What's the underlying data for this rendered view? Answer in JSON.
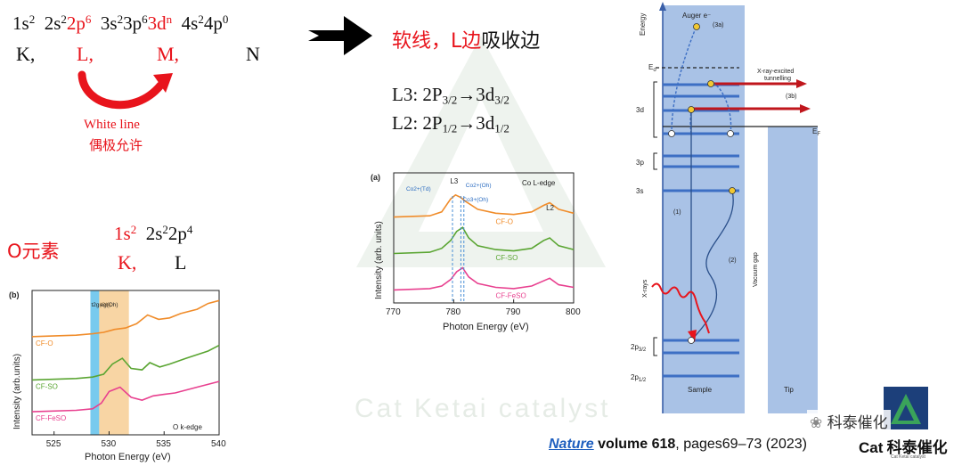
{
  "background_watermark": {
    "text": "Cat Ketai catalyst",
    "color": "#e4ebe4"
  },
  "top_left": {
    "config": [
      {
        "text": "1s",
        "sup": "2",
        "red": false
      },
      {
        "text": "2s",
        "sup": "2",
        "red": false
      },
      {
        "text": "2p",
        "sup": "6",
        "red": true
      },
      {
        "text": "3s",
        "sup": "2",
        "red": false
      },
      {
        "text": "3p",
        "sup": "6",
        "red": false
      },
      {
        "text": "3d",
        "sup": "n",
        "red": true
      },
      {
        "text": "4s",
        "sup": "2",
        "red": false
      },
      {
        "text": "4p",
        "sup": "0",
        "red": false
      }
    ],
    "shells": {
      "k": "K,",
      "l": "L,",
      "m": "M,",
      "n": "N"
    },
    "white_line": "White line",
    "dipole_allowed": "偶极允许"
  },
  "middle_text": {
    "soft_xray": "软线，L边",
    "absorption_edge": "吸收边",
    "l3_label": "L3: 2P",
    "l3_sub": "3/2",
    "l3_arrow_to": "→3d",
    "l3_sub2": "3/2",
    "l2_label": "L2: 2P",
    "l2_sub": "1/2",
    "l2_arrow_to": "→3d",
    "l2_sub2": "1/2"
  },
  "oxygen": {
    "label": "O元素",
    "config_a": "1s",
    "config_a_sup": "2",
    "config_b": "2s",
    "config_b_sup": "2",
    "config_c": "2p",
    "config_c_sup": "4",
    "shell_k": "K,",
    "shell_l": "L"
  },
  "colors": {
    "red": "#e8141c",
    "orange": "#f08c2a",
    "green": "#5aa532",
    "pink": "#e8408f",
    "blue_band": "#a9c2e6",
    "level_blue": "#3d6fc4",
    "dark_red": "#c0161c"
  },
  "chart_data": [
    {
      "type": "line",
      "panel": "(b)",
      "xlabel": "Photon Energy (eV)",
      "ylabel": "Intensity (arb.units)",
      "xlim": [
        523,
        540
      ],
      "xticks": [
        525,
        530,
        535,
        540
      ],
      "annotation": "O k-edge",
      "regions": [
        {
          "label": "t2g(Oh)",
          "range": [
            528.3,
            529.1
          ]
        },
        {
          "label": "eg(Oh)",
          "range": [
            529.1,
            531.8
          ]
        }
      ],
      "series": [
        {
          "name": "CF-O",
          "color": "#f08c2a",
          "x": [
            523,
            527,
            528.5,
            529.5,
            530.5,
            531.5,
            532.5,
            533.5,
            534.5,
            535.5,
            536.5,
            538,
            539,
            540
          ],
          "y": [
            0.68,
            0.69,
            0.7,
            0.71,
            0.73,
            0.74,
            0.77,
            0.83,
            0.8,
            0.81,
            0.84,
            0.87,
            0.91,
            0.93
          ]
        },
        {
          "name": "CF-SO",
          "color": "#5aa532",
          "x": [
            523,
            527,
            528.5,
            529.5,
            530.3,
            531.2,
            532,
            533,
            533.7,
            534.6,
            535.5,
            537,
            539,
            540
          ],
          "y": [
            0.38,
            0.39,
            0.4,
            0.42,
            0.49,
            0.53,
            0.46,
            0.45,
            0.5,
            0.47,
            0.49,
            0.53,
            0.58,
            0.62
          ]
        },
        {
          "name": "CF-FeSO",
          "color": "#e8408f",
          "x": [
            523,
            527,
            528.5,
            529.3,
            530,
            531,
            532,
            533,
            534,
            535,
            536,
            538,
            540
          ],
          "y": [
            0.16,
            0.17,
            0.18,
            0.22,
            0.3,
            0.33,
            0.26,
            0.24,
            0.27,
            0.28,
            0.29,
            0.33,
            0.37
          ]
        }
      ]
    },
    {
      "type": "line",
      "panel": "(a)",
      "xlabel": "Photon Energy (eV)",
      "ylabel": "Intensity (arb. units)",
      "xlim": [
        770,
        800
      ],
      "xticks": [
        770,
        780,
        790,
        800
      ],
      "annotation": "Co L-edge",
      "peak_labels": [
        {
          "label": "L3",
          "x": 780
        },
        {
          "label": "L2",
          "x": 796
        },
        {
          "label": "Co2+(Td)",
          "x": 779.8
        },
        {
          "label": "Co2+(Oh)",
          "x": 781.7
        },
        {
          "label": "Co3+(Oh)",
          "x": 781.2
        }
      ],
      "series": [
        {
          "name": "CF-O",
          "color": "#f08c2a",
          "x": [
            770,
            776,
            778,
            779.5,
            780.3,
            781.2,
            782,
            784,
            787,
            790,
            793,
            795,
            796,
            797.5,
            800
          ],
          "y": [
            0.66,
            0.67,
            0.7,
            0.8,
            0.83,
            0.81,
            0.78,
            0.72,
            0.69,
            0.68,
            0.7,
            0.75,
            0.77,
            0.72,
            0.69
          ]
        },
        {
          "name": "CF-SO",
          "color": "#5aa532",
          "x": [
            770,
            776,
            778,
            779.5,
            780.5,
            781.5,
            782.5,
            784,
            787,
            790,
            793,
            795,
            796,
            797.5,
            800
          ],
          "y": [
            0.38,
            0.39,
            0.42,
            0.48,
            0.55,
            0.58,
            0.5,
            0.44,
            0.41,
            0.4,
            0.42,
            0.48,
            0.5,
            0.44,
            0.41
          ]
        },
        {
          "name": "CF-FeSO",
          "color": "#e8408f",
          "x": [
            770,
            776,
            778,
            779.5,
            780.5,
            781.5,
            782.5,
            784,
            787,
            790,
            793,
            795,
            796,
            797.5,
            800
          ],
          "y": [
            0.1,
            0.11,
            0.13,
            0.18,
            0.24,
            0.27,
            0.2,
            0.15,
            0.12,
            0.11,
            0.13,
            0.17,
            0.19,
            0.14,
            0.12
          ]
        }
      ]
    }
  ],
  "energy_diagram": {
    "energy_label": "Energy",
    "eo_label": "E",
    "eo_sub": "o",
    "ef_label": "E",
    "ef_sub": "F",
    "auger": "Auger e⁻",
    "auger_ref": "(3a)",
    "xray_tunnel_line1": "X-ray-excited",
    "xray_tunnel_line2": "tunnelling",
    "tunnel_ref": "(3b)",
    "level_3d": "3d",
    "level_3p": "3p",
    "level_3s": "3s",
    "level_2p32": "2p",
    "level_2p32_sub": "3/2",
    "level_2p12": "2p",
    "level_2p12_sub": "1/2",
    "step1": "(1)",
    "step2": "(2)",
    "xrays": "X-rays",
    "vacuum_gap": "Vacuum gap",
    "sample": "Sample",
    "tip": "Tip"
  },
  "citation": {
    "journal": "Nature",
    "volume": "volume 618",
    "pages": ", pages69–73 (2023)"
  },
  "logo": {
    "wechat_name": "科泰催化",
    "brand_prefix": "Cat",
    "brand_cn": "科泰催化",
    "brand_sub": "Cat Ketai catalyst"
  }
}
